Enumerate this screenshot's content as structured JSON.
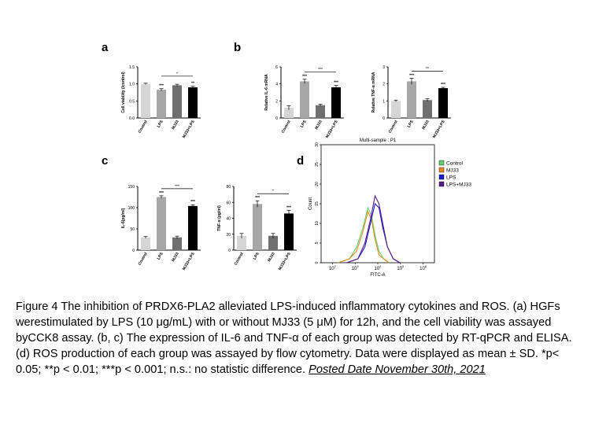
{
  "panels": {
    "a": "a",
    "b": "b",
    "c": "c",
    "d": "d"
  },
  "colors": {
    "control": "#d6d6d6",
    "lps": "#a7a7a7",
    "mj33": "#6f6f6f",
    "combo": "#000000",
    "flow_control": "#5fd36b",
    "flow_mj33": "#e8891d",
    "flow_lps": "#1c1ccc",
    "flow_combo": "#5a1b87"
  },
  "chart_data": [
    {
      "panel": "a",
      "type": "bar",
      "categories": [
        "Control",
        "LPS",
        "MJ33",
        "MJ33+LPS"
      ],
      "values": [
        1.0,
        0.83,
        0.96,
        0.9
      ],
      "errors": [
        0.02,
        0.03,
        0.03,
        0.03
      ],
      "stars": [
        "",
        "***",
        "",
        "**"
      ],
      "ylabel": "Cell viability (/control)",
      "ylim": [
        0,
        1.5
      ],
      "yticks": [
        "0.0",
        "0.5",
        "1.0",
        "1.5"
      ],
      "bracket": {
        "from": 1,
        "to": 3,
        "label": "*"
      }
    },
    {
      "panel": "b",
      "type": "bar",
      "categories": [
        "Control",
        "LPS",
        "MJ33",
        "MJ33+LPS"
      ],
      "values": [
        1.2,
        4.3,
        1.5,
        3.6
      ],
      "errors": [
        0.25,
        0.25,
        0.12,
        0.22
      ],
      "stars": [
        "",
        "***",
        "",
        "***"
      ],
      "ylabel": "Relative IL-6 mRNA",
      "ylim": [
        0,
        6
      ],
      "yticks": [
        "0",
        "2",
        "4",
        "6"
      ],
      "bracket": {
        "from": 1,
        "to": 3,
        "label": "***"
      }
    },
    {
      "panel": "b",
      "type": "bar",
      "categories": [
        "Control",
        "LPS",
        "MJ33",
        "MJ33+LPS"
      ],
      "values": [
        1.0,
        2.15,
        1.05,
        1.75
      ],
      "errors": [
        0.05,
        0.18,
        0.08,
        0.05
      ],
      "stars": [
        "",
        "***",
        "",
        "***"
      ],
      "ylabel": "Relative TNF-α mRNA",
      "ylim": [
        0,
        3
      ],
      "yticks": [
        "0",
        "1",
        "2",
        "3"
      ],
      "bracket": {
        "from": 1,
        "to": 3,
        "label": "**"
      }
    },
    {
      "panel": "c",
      "type": "bar",
      "categories": [
        "Control",
        "LPS",
        "MJ33",
        "MJ33+LPS"
      ],
      "values": [
        30,
        125,
        30,
        104
      ],
      "errors": [
        2,
        3,
        3,
        3
      ],
      "stars": [
        "",
        "***",
        "",
        "***"
      ],
      "ylabel": "IL-6(pg/ml)",
      "ylim": [
        0,
        150
      ],
      "yticks": [
        "0",
        "50",
        "100",
        "150"
      ],
      "bracket": {
        "from": 1,
        "to": 3,
        "label": "***"
      }
    },
    {
      "panel": "c",
      "type": "bar",
      "categories": [
        "Control",
        "LPS",
        "MJ33",
        "MJ33+LPS"
      ],
      "values": [
        18,
        58,
        18,
        46
      ],
      "errors": [
        3,
        4,
        3,
        4
      ],
      "stars": [
        "",
        "***",
        "",
        "***"
      ],
      "ylabel": "TNF-α (pg/ml)",
      "ylim": [
        0,
        80
      ],
      "yticks": [
        "0",
        "20",
        "40",
        "60",
        "80"
      ],
      "bracket": {
        "from": 1,
        "to": 3,
        "label": "*"
      }
    },
    {
      "panel": "d",
      "type": "line",
      "title": "Multi-sample : P1",
      "xlabel": "FITC-A",
      "ylabel": "Count",
      "log_x": true,
      "xlim": [
        100,
        1000000
      ],
      "ylim": [
        0,
        30
      ],
      "yticks": [
        "0",
        "5",
        "10",
        "15",
        "20",
        "25",
        "30"
      ],
      "xticks": [
        {
          "base": "10",
          "exp": "2"
        },
        {
          "base": "10",
          "exp": "3"
        },
        {
          "base": "10",
          "exp": "4"
        },
        {
          "base": "10",
          "exp": "5"
        },
        {
          "base": "10",
          "exp": "6"
        }
      ],
      "legend": [
        "Control",
        "MJ33",
        "LPS",
        "LPS+MJ33"
      ],
      "legend_position": "top-right",
      "series": [
        {
          "name": "Control",
          "x": [
            400,
            1000,
            1800,
            3000,
            4500,
            6000,
            8000,
            11000,
            16000,
            25000
          ],
          "y": [
            0,
            1,
            4,
            9,
            14,
            12,
            7,
            3,
            1,
            0
          ]
        },
        {
          "name": "MJ33",
          "x": [
            400,
            1000,
            1800,
            3000,
            4500,
            6000,
            8000,
            11000,
            16000,
            25000
          ],
          "y": [
            0,
            1,
            3,
            8,
            13,
            11,
            6,
            2,
            1,
            0
          ]
        },
        {
          "name": "LPS",
          "x": [
            800,
            2000,
            3500,
            5500,
            8000,
            11000,
            15000,
            22000,
            35000,
            60000
          ],
          "y": [
            0,
            1,
            4,
            10,
            15,
            14,
            9,
            4,
            1,
            0
          ]
        },
        {
          "name": "LPS+MJ33",
          "x": [
            800,
            2000,
            3500,
            5500,
            8000,
            11000,
            15000,
            22000,
            35000,
            60000
          ],
          "y": [
            0,
            1,
            5,
            11,
            17,
            15,
            10,
            4,
            1,
            0
          ]
        }
      ]
    }
  ],
  "caption": {
    "text": "Figure 4 The inhibition of PRDX6-PLA2 alleviated LPS-induced inflammatory cytokines and ROS. (a) HGFs werestimulated by LPS (10 μg/mL) with or without MJ33 (5 μM) for 12h, and the cell viability was assayed byCCK8 assay. (b, c) The expression of IL-6 and TNF-α of each group was detected by RT-qPCR and ELISA.(d) ROS production of each group was assayed by flow cytometry. Data were displayed as mean ± SD. *p< 0.05; **p < 0.01; ***p < 0.001; n.s.: no statistic difference.",
    "posted": "Posted Date November 30th, 2021"
  }
}
